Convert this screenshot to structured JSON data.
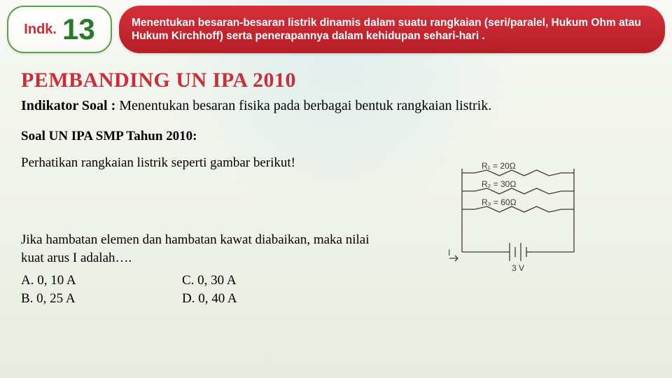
{
  "header": {
    "indk_label": "Indk.",
    "indk_number": "13",
    "description": "Menentukan besaran-besaran listrik dinamis dalam suatu rangkaian (seri/paralel, Hukum Ohm atau Hukum Kirchhoff) serta penerapannya dalam kehidupan sehari-hari ."
  },
  "title": "PEMBANDING UN IPA 2010",
  "indikator": {
    "label": "Indikator Soal :",
    "text": "Menentukan besaran fisika pada berbagai bentuk rangkaian listrik."
  },
  "soal_heading": "Soal UN IPA SMP Tahun 2010:",
  "prompt": "Perhatikan rangkaian listrik seperti gambar berikut!",
  "question": "Jika hambatan elemen dan hambatan kawat diabaikan, maka nilai kuat arus I adalah….",
  "choices": {
    "a_label": "A. 0, 10 A",
    "b_label": "B. 0, 25 A",
    "c_label": "C. 0, 30 A",
    "d_label": "D. 0, 40 A"
  },
  "circuit": {
    "type": "schematic",
    "resistors": [
      {
        "name": "R₁",
        "value": "20Ω"
      },
      {
        "name": "R₂",
        "value": "30Ω"
      },
      {
        "name": "R₃",
        "value": "60Ω"
      }
    ],
    "current_label": "I",
    "source_label": "3 V",
    "stroke": "#3a3a3a",
    "stroke_width": 1.3,
    "text_color": "#3a3a3a",
    "font_size": 12
  },
  "colors": {
    "red": "#c92f3a",
    "green_border": "#5aa344",
    "green_num": "#2a7a2a",
    "pill_red_top": "#d52f39",
    "pill_red_bot": "#b61f28",
    "text": "#222222",
    "bg_top": "#f5f7f2",
    "bg_bot": "#e8ecdf"
  }
}
